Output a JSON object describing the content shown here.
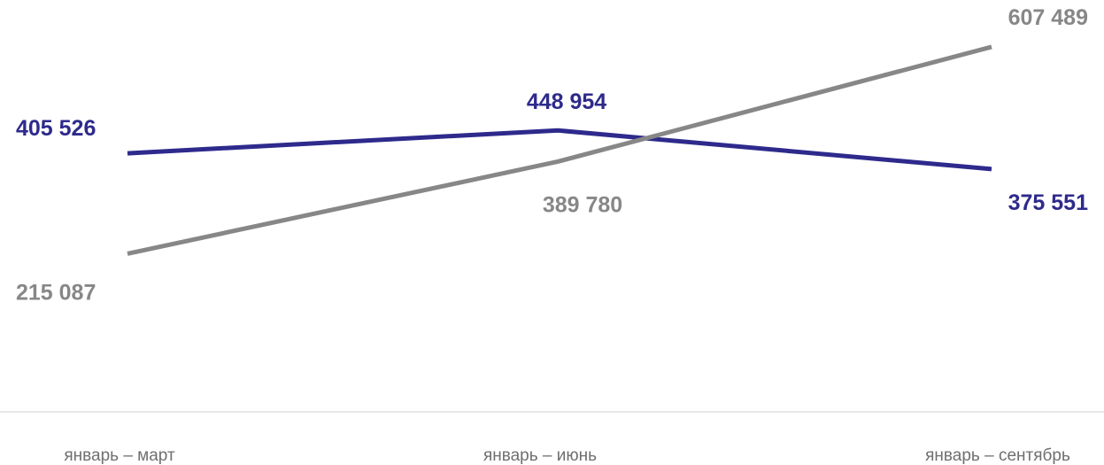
{
  "chart_data": {
    "type": "line",
    "categories": [
      "январь – март",
      "январь – июнь",
      "январь – сентябрь"
    ],
    "series": [
      {
        "values": [
          405526,
          448954,
          375551
        ],
        "labels": [
          "405 526",
          "448 954",
          "375 551"
        ],
        "color": "#2e2a8c"
      },
      {
        "values": [
          215087,
          389780,
          607489
        ],
        "labels": [
          "215 087",
          "389 780",
          "607 489"
        ],
        "color": "#878787"
      }
    ],
    "title": "",
    "xlabel": "",
    "ylabel": "",
    "grid": false,
    "legend": "none",
    "axis_color": "#d0d0d0"
  }
}
